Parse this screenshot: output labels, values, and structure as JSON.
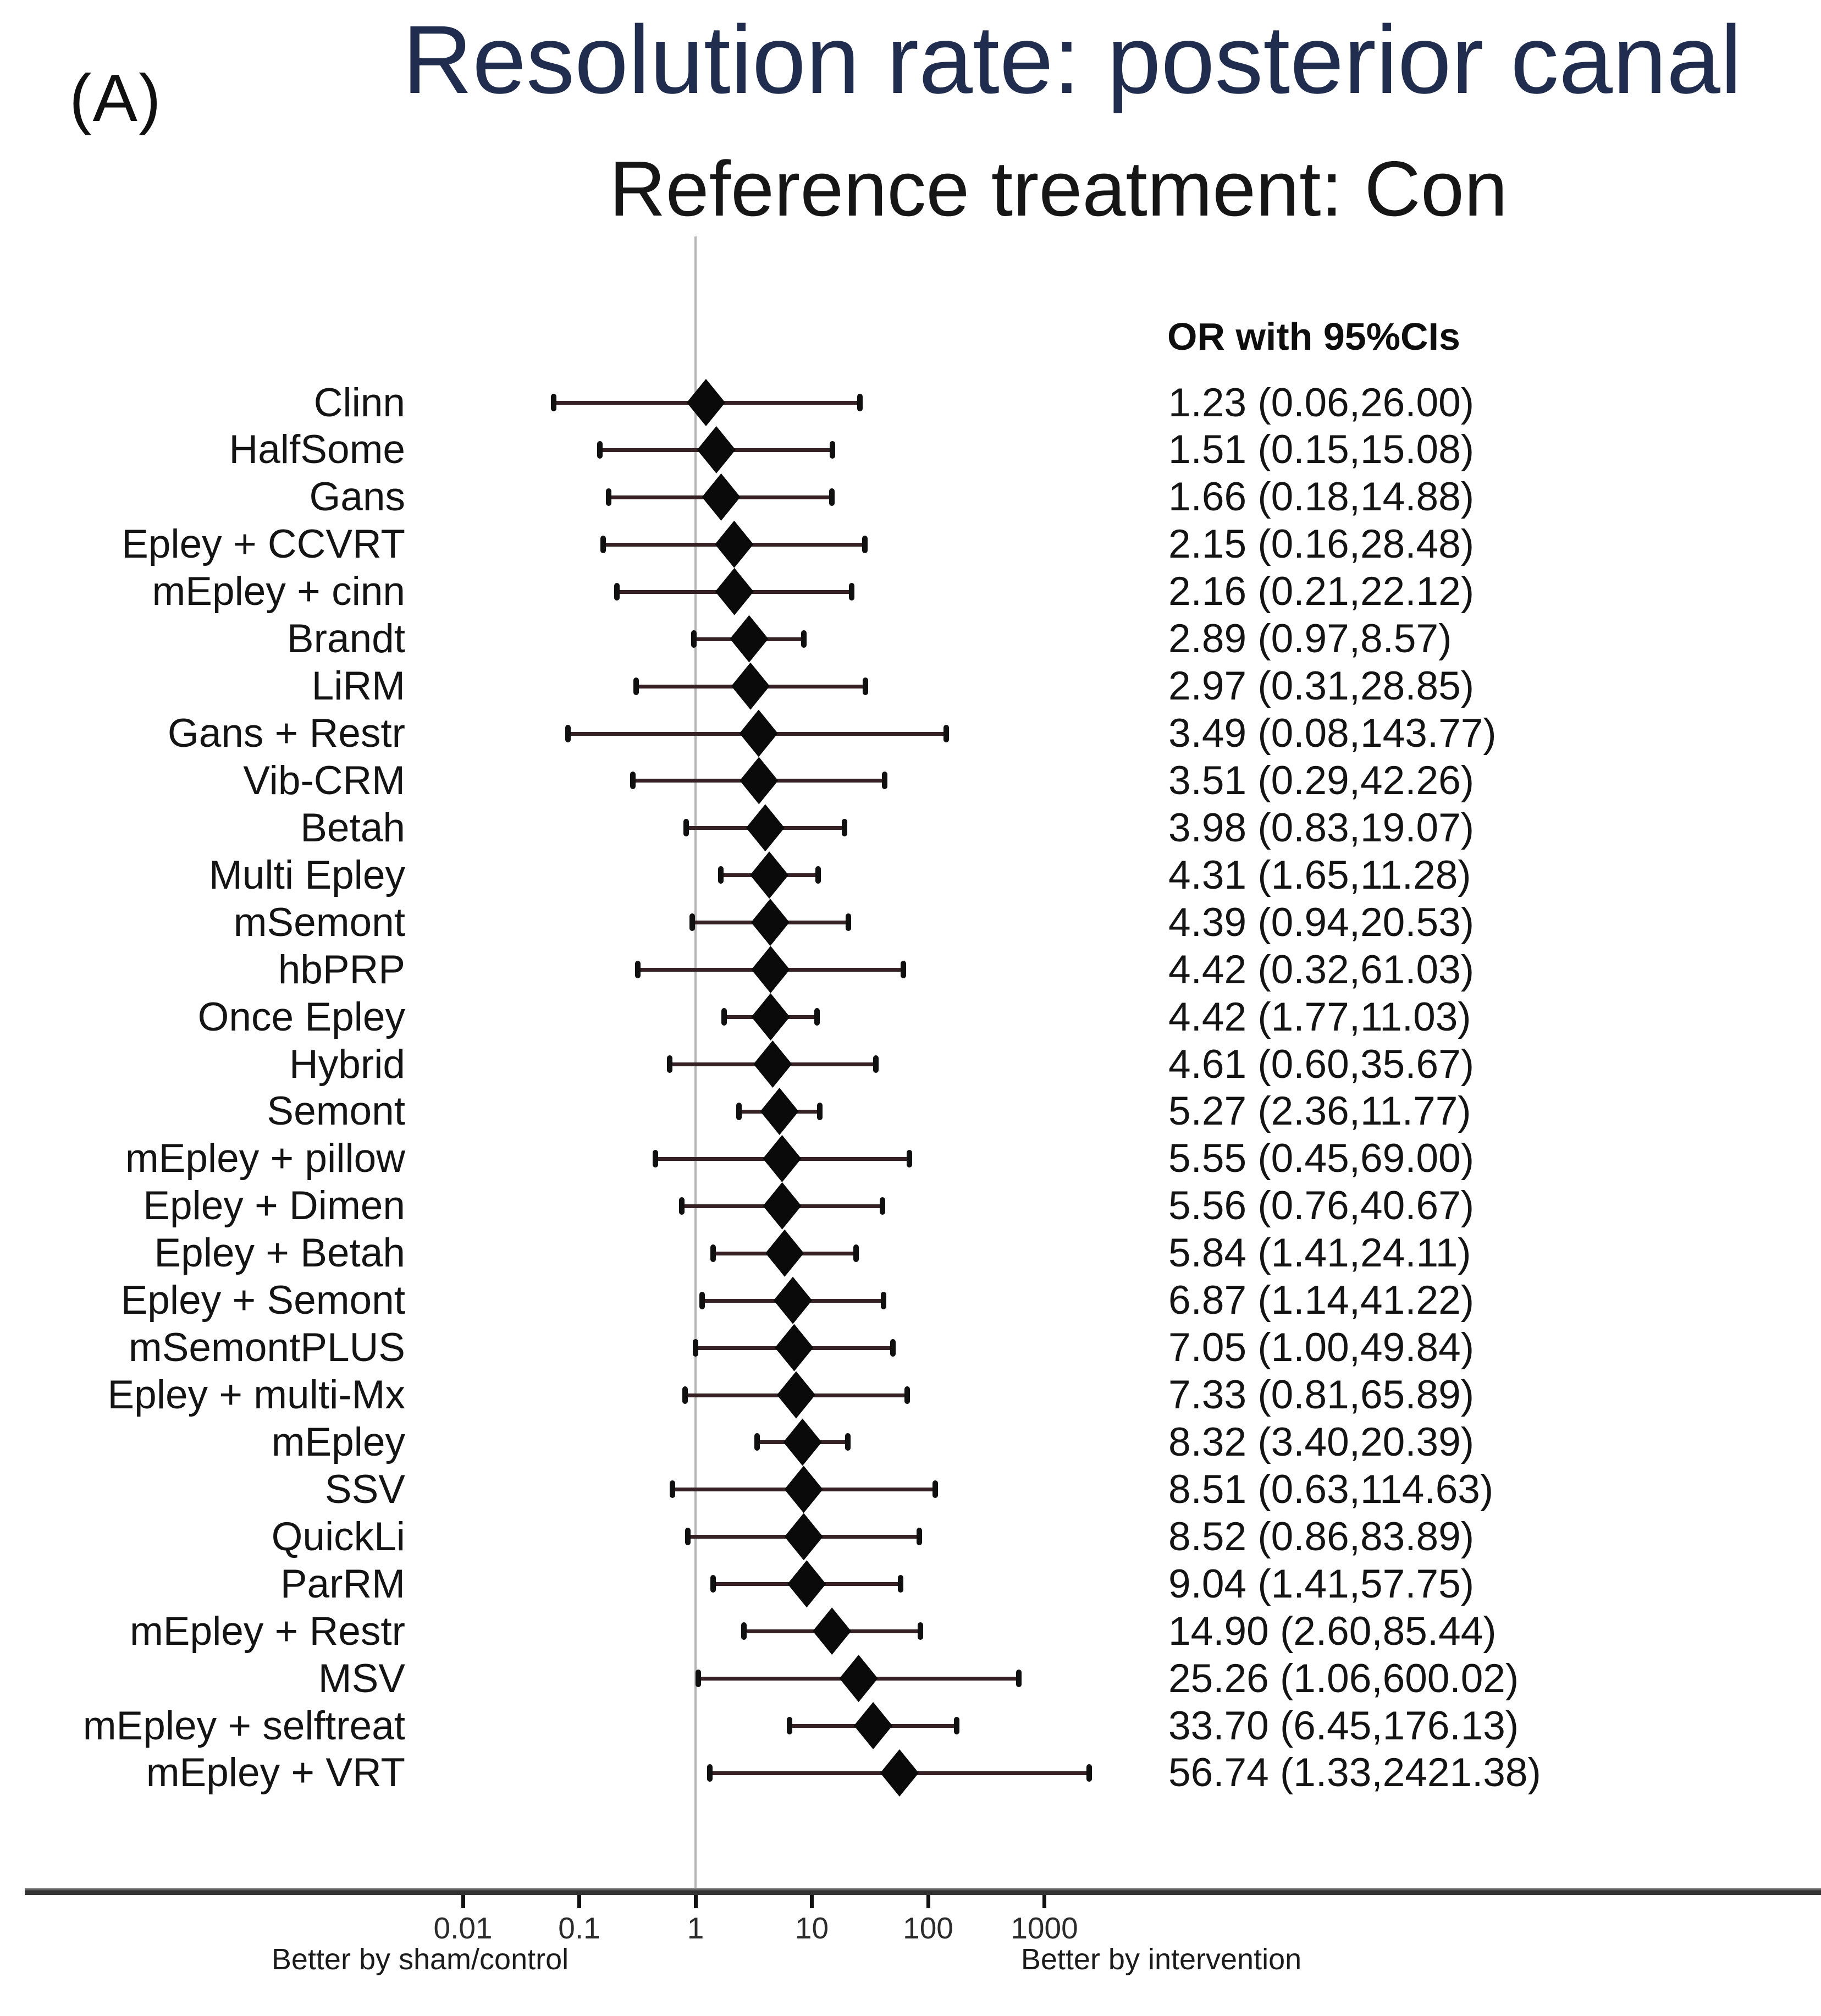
{
  "panel_label": "(A)",
  "title": "Resolution rate: posterior canal",
  "subtitle": "Reference treatment: Con",
  "column_header": "OR with 95%CIs",
  "colors": {
    "title": "#202d4e",
    "text": "#141414",
    "marker": "#0a0a0a",
    "ci_line": "#362225",
    "reference_line": "#b5b5b5",
    "axis_line": "#3d3d3d"
  },
  "chart_data": {
    "type": "forest",
    "title": "Resolution rate: posterior canal",
    "subtitle": "Reference treatment: Con",
    "x_scale": "log10",
    "x_ticks": [
      0.01,
      0.1,
      1,
      10,
      100,
      1000
    ],
    "x_tick_labels": [
      "0.01",
      "0.1",
      "1",
      "10",
      "100",
      "1000"
    ],
    "x_range": [
      0.004,
      4000
    ],
    "reference_value": 1,
    "or_header": "OR with 95%CIs",
    "xlabel_left": "Better by sham/control",
    "xlabel_right": "Better by intervention",
    "rows": [
      {
        "treatment": "Clinn",
        "or": 1.23,
        "ci_low": 0.06,
        "ci_high": 26.0,
        "display": "1.23 (0.06,26.00)"
      },
      {
        "treatment": "HalfSome",
        "or": 1.51,
        "ci_low": 0.15,
        "ci_high": 15.08,
        "display": "1.51 (0.15,15.08)"
      },
      {
        "treatment": "Gans",
        "or": 1.66,
        "ci_low": 0.18,
        "ci_high": 14.88,
        "display": "1.66 (0.18,14.88)"
      },
      {
        "treatment": "Epley + CCVRT",
        "or": 2.15,
        "ci_low": 0.16,
        "ci_high": 28.48,
        "display": "2.15 (0.16,28.48)"
      },
      {
        "treatment": "mEpley + cinn",
        "or": 2.16,
        "ci_low": 0.21,
        "ci_high": 22.12,
        "display": "2.16 (0.21,22.12)"
      },
      {
        "treatment": "Brandt",
        "or": 2.89,
        "ci_low": 0.97,
        "ci_high": 8.57,
        "display": "2.89 (0.97,8.57)"
      },
      {
        "treatment": "LiRM",
        "or": 2.97,
        "ci_low": 0.31,
        "ci_high": 28.85,
        "display": "2.97 (0.31,28.85)"
      },
      {
        "treatment": "Gans + Restr",
        "or": 3.49,
        "ci_low": 0.08,
        "ci_high": 143.77,
        "display": "3.49 (0.08,143.77)"
      },
      {
        "treatment": "Vib-CRM",
        "or": 3.51,
        "ci_low": 0.29,
        "ci_high": 42.26,
        "display": "3.51 (0.29,42.26)"
      },
      {
        "treatment": "Betah",
        "or": 3.98,
        "ci_low": 0.83,
        "ci_high": 19.07,
        "display": "3.98 (0.83,19.07)"
      },
      {
        "treatment": "Multi Epley",
        "or": 4.31,
        "ci_low": 1.65,
        "ci_high": 11.28,
        "display": "4.31 (1.65,11.28)"
      },
      {
        "treatment": "mSemont",
        "or": 4.39,
        "ci_low": 0.94,
        "ci_high": 20.53,
        "display": "4.39 (0.94,20.53)"
      },
      {
        "treatment": "hbPRP",
        "or": 4.42,
        "ci_low": 0.32,
        "ci_high": 61.03,
        "display": "4.42 (0.32,61.03)"
      },
      {
        "treatment": "Once Epley",
        "or": 4.42,
        "ci_low": 1.77,
        "ci_high": 11.03,
        "display": "4.42 (1.77,11.03)"
      },
      {
        "treatment": "Hybrid",
        "or": 4.61,
        "ci_low": 0.6,
        "ci_high": 35.67,
        "display": "4.61 (0.60,35.67)"
      },
      {
        "treatment": "Semont",
        "or": 5.27,
        "ci_low": 2.36,
        "ci_high": 11.77,
        "display": "5.27 (2.36,11.77)"
      },
      {
        "treatment": "mEpley + pillow",
        "or": 5.55,
        "ci_low": 0.45,
        "ci_high": 69.0,
        "display": "5.55 (0.45,69.00)"
      },
      {
        "treatment": "Epley + Dimen",
        "or": 5.56,
        "ci_low": 0.76,
        "ci_high": 40.67,
        "display": "5.56 (0.76,40.67)"
      },
      {
        "treatment": "Epley + Betah",
        "or": 5.84,
        "ci_low": 1.41,
        "ci_high": 24.11,
        "display": "5.84 (1.41,24.11)"
      },
      {
        "treatment": "Epley + Semont",
        "or": 6.87,
        "ci_low": 1.14,
        "ci_high": 41.22,
        "display": "6.87 (1.14,41.22)"
      },
      {
        "treatment": "mSemontPLUS",
        "or": 7.05,
        "ci_low": 1.0,
        "ci_high": 49.84,
        "display": "7.05 (1.00,49.84)"
      },
      {
        "treatment": "Epley + multi-Mx",
        "or": 7.33,
        "ci_low": 0.81,
        "ci_high": 65.89,
        "display": "7.33 (0.81,65.89)"
      },
      {
        "treatment": "mEpley",
        "or": 8.32,
        "ci_low": 3.4,
        "ci_high": 20.39,
        "display": "8.32 (3.40,20.39)"
      },
      {
        "treatment": "SSV",
        "or": 8.51,
        "ci_low": 0.63,
        "ci_high": 114.63,
        "display": "8.51 (0.63,114.63)"
      },
      {
        "treatment": "QuickLi",
        "or": 8.52,
        "ci_low": 0.86,
        "ci_high": 83.89,
        "display": "8.52 (0.86,83.89)"
      },
      {
        "treatment": "ParRM",
        "or": 9.04,
        "ci_low": 1.41,
        "ci_high": 57.75,
        "display": "9.04 (1.41,57.75)"
      },
      {
        "treatment": "mEpley + Restr",
        "or": 14.9,
        "ci_low": 2.6,
        "ci_high": 85.44,
        "display": "14.90 (2.60,85.44)"
      },
      {
        "treatment": "MSV",
        "or": 25.26,
        "ci_low": 1.06,
        "ci_high": 600.02,
        "display": "25.26 (1.06,600.02)"
      },
      {
        "treatment": "mEpley + selftreat",
        "or": 33.7,
        "ci_low": 6.45,
        "ci_high": 176.13,
        "display": "33.70 (6.45,176.13)"
      },
      {
        "treatment": "mEpley + VRT",
        "or": 56.74,
        "ci_low": 1.33,
        "ci_high": 2421.38,
        "display": "56.74 (1.33,2421.38)"
      }
    ]
  }
}
